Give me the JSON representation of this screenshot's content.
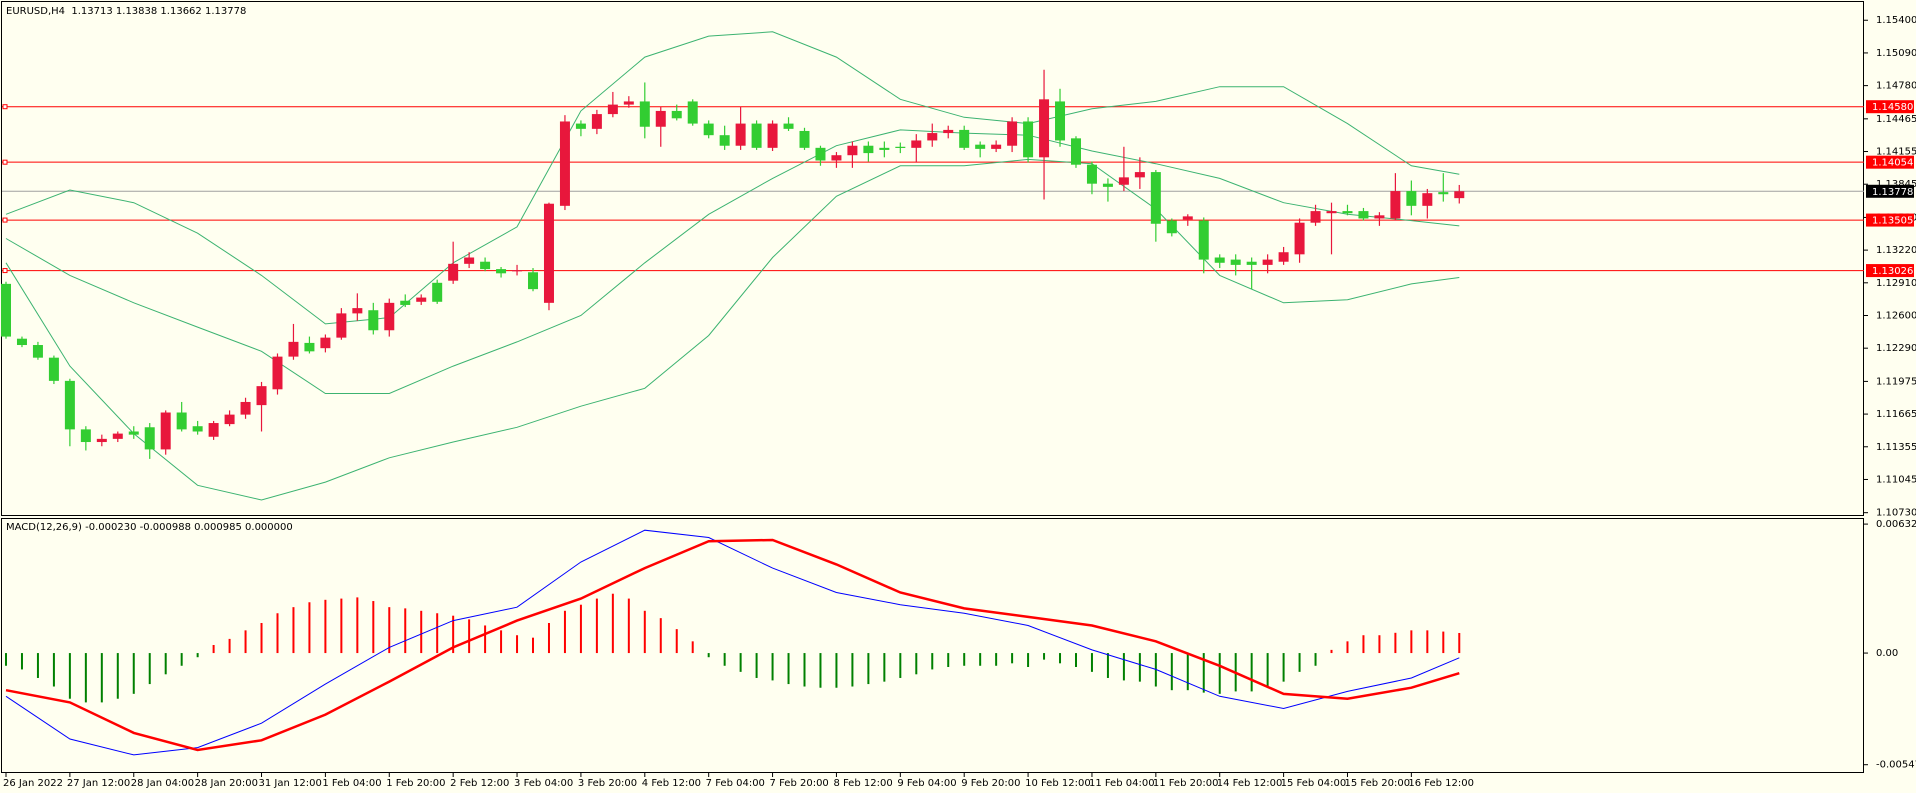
{
  "chart_data": [
    {
      "type": "candlestick",
      "title": "EURUSD,H4  1.13713 1.13838 1.13662 1.13778",
      "categories": [
        "26 Jan 2022",
        null,
        null,
        null,
        "27 Jan 12:00",
        null,
        null,
        null,
        "28 Jan 04:00",
        null,
        null,
        null,
        "28 Jan 20:00",
        null,
        null,
        null,
        "31 Jan 12:00",
        null,
        null,
        null,
        "1 Feb 04:00",
        null,
        null,
        null,
        "1 Feb 20:00",
        null,
        null,
        null,
        "2 Feb 12:00",
        null,
        null,
        null,
        "3 Feb 04:00",
        null,
        null,
        null,
        "3 Feb 20:00",
        null,
        null,
        null,
        "4 Feb 12:00",
        null,
        null,
        null,
        "7 Feb 04:00",
        null,
        null,
        null,
        "7 Feb 20:00",
        null,
        null,
        null,
        "8 Feb 12:00",
        null,
        null,
        null,
        "9 Feb 04:00",
        null,
        null,
        null,
        "9 Feb 20:00",
        null,
        null,
        null,
        "10 Feb 12:00",
        null,
        null,
        null,
        "11 Feb 04:00",
        null,
        null,
        null,
        "11 Feb 20:00",
        null,
        null,
        null,
        "14 Feb 12:00",
        null,
        null,
        null,
        "15 Feb 04:00",
        null,
        null,
        null,
        "15 Feb 20:00",
        null,
        null,
        null,
        "16 Feb 12:00",
        null,
        null,
        null
      ],
      "open": [
        1.129,
        1.1238,
        1.1232,
        1.122,
        1.1198,
        1.1152,
        1.114,
        1.1143,
        1.115,
        1.1154,
        1.1133,
        1.1168,
        1.1155,
        1.1145,
        1.1157,
        1.1166,
        1.1175,
        1.119,
        1.1221,
        1.1234,
        1.1229,
        1.1239,
        1.1262,
        1.1265,
        1.1246,
        1.1274,
        1.1273,
        1.1291,
        1.1293,
        1.1309,
        1.1311,
        1.1304,
        1.1302,
        1.1301,
        1.1272,
        1.1364,
        1.1442,
        1.1437,
        1.1451,
        1.146,
        1.1463,
        1.1439,
        1.1454,
        1.1463,
        1.1442,
        1.1431,
        1.1421,
        1.1442,
        1.1419,
        1.1442,
        1.1435,
        1.1419,
        1.1407,
        1.1412,
        1.1421,
        1.1419,
        1.142,
        1.1419,
        1.1426,
        1.1433,
        1.1436,
        1.1422,
        1.1418,
        1.1421,
        1.1444,
        1.141,
        1.1463,
        1.1428,
        1.1403,
        1.1385,
        1.1384,
        1.1391,
        1.1396,
        1.135,
        1.1351,
        1.135,
        1.1315,
        1.1313,
        1.1311,
        1.1308,
        1.1311,
        1.1318,
        1.1348,
        1.1357,
        1.1359,
        1.1359,
        1.1352,
        1.1352,
        1.1378,
        1.1364,
        1.1377,
        1.13713
      ],
      "high": [
        1.1292,
        1.124,
        1.1235,
        1.1222,
        1.12,
        1.1155,
        1.1147,
        1.115,
        1.1155,
        1.1158,
        1.117,
        1.1178,
        1.116,
        1.116,
        1.117,
        1.1182,
        1.1197,
        1.1224,
        1.1252,
        1.124,
        1.1242,
        1.1267,
        1.1281,
        1.1272,
        1.1276,
        1.128,
        1.128,
        1.1294,
        1.133,
        1.132,
        1.1315,
        1.1306,
        1.1308,
        1.1305,
        1.1367,
        1.145,
        1.1445,
        1.1455,
        1.1472,
        1.1468,
        1.1481,
        1.1458,
        1.146,
        1.1465,
        1.1445,
        1.144,
        1.1458,
        1.1445,
        1.1445,
        1.1448,
        1.1438,
        1.1421,
        1.1415,
        1.1425,
        1.1425,
        1.1425,
        1.1424,
        1.1432,
        1.1442,
        1.144,
        1.144,
        1.1425,
        1.1426,
        1.1448,
        1.1448,
        1.1493,
        1.1475,
        1.143,
        1.1406,
        1.139,
        1.142,
        1.141,
        1.1398,
        1.1352,
        1.1356,
        1.1353,
        1.1318,
        1.1318,
        1.1315,
        1.1318,
        1.1325,
        1.1352,
        1.1365,
        1.1367,
        1.1365,
        1.1362,
        1.1358,
        1.1395,
        1.1388,
        1.138,
        1.1395,
        1.13838
      ],
      "low": [
        1.1238,
        1.123,
        1.1218,
        1.1195,
        1.1136,
        1.1132,
        1.1136,
        1.114,
        1.1143,
        1.1124,
        1.1128,
        1.115,
        1.1147,
        1.1142,
        1.1155,
        1.1162,
        1.115,
        1.1185,
        1.1218,
        1.1224,
        1.1225,
        1.1237,
        1.1255,
        1.1242,
        1.124,
        1.1268,
        1.127,
        1.1271,
        1.129,
        1.1305,
        1.1302,
        1.1296,
        1.1298,
        1.1283,
        1.1265,
        1.136,
        1.143,
        1.1432,
        1.1448,
        1.1457,
        1.1428,
        1.142,
        1.1445,
        1.144,
        1.1428,
        1.1417,
        1.1417,
        1.1417,
        1.1416,
        1.1435,
        1.1417,
        1.1402,
        1.14,
        1.14,
        1.1406,
        1.141,
        1.1414,
        1.1405,
        1.142,
        1.1428,
        1.1417,
        1.141,
        1.1415,
        1.1415,
        1.1405,
        1.137,
        1.142,
        1.14,
        1.1375,
        1.1368,
        1.1378,
        1.138,
        1.133,
        1.1335,
        1.1345,
        1.13,
        1.1305,
        1.1298,
        1.1285,
        1.13,
        1.1308,
        1.131,
        1.1345,
        1.1318,
        1.1355,
        1.135,
        1.1345,
        1.135,
        1.1355,
        1.1352,
        1.1368,
        1.13662
      ],
      "close": [
        1.124,
        1.1232,
        1.122,
        1.1198,
        1.1152,
        1.114,
        1.1143,
        1.1148,
        1.1147,
        1.1133,
        1.1168,
        1.1152,
        1.115,
        1.1158,
        1.1166,
        1.1178,
        1.1193,
        1.1221,
        1.1235,
        1.1226,
        1.1239,
        1.1262,
        1.1267,
        1.1246,
        1.1272,
        1.127,
        1.1277,
        1.1273,
        1.1309,
        1.1315,
        1.1304,
        1.13,
        1.1303,
        1.1285,
        1.1366,
        1.1444,
        1.1437,
        1.1451,
        1.146,
        1.1463,
        1.1439,
        1.1454,
        1.1447,
        1.1442,
        1.1431,
        1.1421,
        1.1442,
        1.1419,
        1.1442,
        1.1437,
        1.1419,
        1.1407,
        1.1412,
        1.1421,
        1.1414,
        1.1417,
        1.1419,
        1.1426,
        1.1433,
        1.1436,
        1.1419,
        1.1418,
        1.1422,
        1.1444,
        1.141,
        1.1465,
        1.1426,
        1.1403,
        1.1385,
        1.1382,
        1.1391,
        1.1396,
        1.1347,
        1.1338,
        1.1354,
        1.1313,
        1.131,
        1.1308,
        1.1308,
        1.1313,
        1.132,
        1.1348,
        1.1359,
        1.1359,
        1.1357,
        1.1352,
        1.1355,
        1.1378,
        1.1364,
        1.1376,
        1.1375,
        1.13778
      ],
      "up_color": "#e8173c",
      "down_color": "#32cd32",
      "x": [
        0,
        4,
        8,
        12,
        16,
        20,
        24,
        28,
        32,
        36,
        40,
        44,
        48,
        52,
        56,
        60,
        64,
        68,
        72,
        76,
        80,
        84,
        88,
        91
      ],
      "series": [
        {
          "color": "#3cb371",
          "values": [
            1.1356,
            1.1379,
            1.1367,
            1.1338,
            1.1298,
            1.1252,
            1.1258,
            1.131,
            1.1344,
            1.1454,
            1.1505,
            1.1525,
            1.1529,
            1.1505,
            1.1465,
            1.1448,
            1.1442,
            1.1456,
            1.1463,
            1.1477,
            1.1477,
            1.1442,
            1.1402,
            1.1394
          ]
        },
        {
          "color": "#3cb371",
          "values": [
            1.1333,
            1.1298,
            1.1272,
            1.1249,
            1.1226,
            1.1186,
            1.1186,
            1.1212,
            1.1235,
            1.126,
            1.131,
            1.1356,
            1.139,
            1.1421,
            1.1436,
            1.1433,
            1.1431,
            1.1416,
            1.1404,
            1.139,
            1.1367,
            1.1356,
            1.135,
            1.1345
          ]
        },
        {
          "color": "#3cb371",
          "values": [
            1.131,
            1.1212,
            1.1148,
            1.1099,
            1.1085,
            1.1102,
            1.1125,
            1.114,
            1.1154,
            1.1174,
            1.1191,
            1.1241,
            1.1315,
            1.1373,
            1.1402,
            1.1402,
            1.1408,
            1.1404,
            1.1361,
            1.1298,
            1.1272,
            1.1275,
            1.129,
            1.1296
          ]
        }
      ],
      "levels": [
        {
          "value": 1.1458,
          "label": "1.14580"
        },
        {
          "value": 1.14054,
          "label": "1.14054"
        },
        {
          "value": 1.13505,
          "label": "1.13505"
        },
        {
          "value": 1.13026,
          "label": "1.13026"
        }
      ],
      "level_color": "#ff0000",
      "last_price": {
        "value": 1.13778,
        "label": "1.13778"
      },
      "last_price_color": "#a0a0a0",
      "ylim": [
        1.10708,
        1.15573
      ],
      "yticks": [
        {
          "value": 1.154,
          "label": "1.15400"
        },
        {
          "value": 1.1509,
          "label": "1.15090"
        },
        {
          "value": 1.1478,
          "label": "1.14780"
        },
        {
          "value": 1.14465,
          "label": "1.14465"
        },
        {
          "value": 1.14155,
          "label": "1.14155"
        },
        {
          "value": 1.13845,
          "label": "1.13845"
        },
        {
          "value": 1.1353,
          "label": "1.13530"
        },
        {
          "value": 1.1322,
          "label": "1.13220"
        },
        {
          "value": 1.1291,
          "label": "1.12910"
        },
        {
          "value": 1.126,
          "label": "1.12600"
        },
        {
          "value": 1.1229,
          "label": "1.12290"
        },
        {
          "value": 1.11975,
          "label": "1.11975"
        },
        {
          "value": 1.11665,
          "label": "1.11665"
        },
        {
          "value": 1.11355,
          "label": "1.11355"
        },
        {
          "value": 1.11045,
          "label": "1.11045"
        },
        {
          "value": 1.1073,
          "label": "1.10730"
        }
      ],
      "grid": false
    },
    {
      "type": "macd",
      "title": "MACD(12,26,9) -0.000230 -0.000988 0.000985 0.000000",
      "histogram": {
        "up_color": "#ff0000",
        "down_color": "#008000",
        "values": [
          -0.000623,
          -0.000803,
          -0.001222,
          -0.001641,
          -0.00224,
          -0.00242,
          -0.00242,
          -0.00224,
          -0.002,
          -0.001521,
          -0.001042,
          -0.000623,
          -0.000204,
          0.000395,
          0.000695,
          0.001114,
          0.001474,
          0.001953,
          0.002252,
          0.002492,
          0.002612,
          0.002672,
          0.002731,
          0.002552,
          0.002252,
          0.002192,
          0.002073,
          0.001953,
          0.001833,
          0.001653,
          0.001354,
          0.001114,
          0.000875,
          0.000755,
          0.001474,
          0.002073,
          0.002372,
          0.002672,
          0.002911,
          0.002672,
          0.002073,
          0.001713,
          0.001174,
          0.000575,
          -0.000204,
          -0.000623,
          -0.000922,
          -0.001222,
          -0.001342,
          -0.001521,
          -0.001641,
          -0.001701,
          -0.001701,
          -0.001641,
          -0.001521,
          -0.001402,
          -0.001222,
          -0.001042,
          -0.000803,
          -0.000683,
          -0.000623,
          -0.000623,
          -0.000623,
          -0.000503,
          -0.000683,
          -0.000323,
          -0.000503,
          -0.000683,
          -0.000922,
          -0.001222,
          -0.001342,
          -0.001402,
          -0.001641,
          -0.001821,
          -0.001821,
          -0.001941,
          -0.002,
          -0.001881,
          -0.001881,
          -0.001641,
          -0.001402,
          -0.000922,
          -0.000623,
          0.000156,
          0.000575,
          0.000875,
          0.000875,
          0.000994,
          0.001114,
          0.001114,
          0.001054,
          0.000985
        ]
      },
      "x": [
        0,
        4,
        8,
        12,
        16,
        20,
        24,
        28,
        32,
        36,
        40,
        44,
        48,
        52,
        56,
        60,
        64,
        68,
        72,
        76,
        80,
        84,
        88,
        91
      ],
      "series": [
        {
          "color": "#0000ff",
          "width": 1,
          "values": [
            -0.00212,
            -0.004217,
            -0.004996,
            -0.004636,
            -0.003438,
            -0.001521,
            0.000276,
            0.001593,
            0.002252,
            0.004469,
            0.006026,
            0.005667,
            0.004169,
            0.002971,
            0.002372,
            0.001953,
            0.001354,
            0.000156,
            -0.000803,
            -0.00212,
            -0.002719,
            -0.001881,
            -0.001222,
            -0.00023
          ]
        },
        {
          "color": "#ff0000",
          "width": 2.5,
          "values": [
            -0.001821,
            -0.00242,
            -0.003917,
            -0.004756,
            -0.004277,
            -0.003019,
            -0.001402,
            0.000276,
            0.001593,
            0.002672,
            0.004169,
            0.005487,
            0.005547,
            0.004349,
            0.002971,
            0.002192,
            0.001773,
            0.001354,
            0.000575,
            -0.000623,
            -0.002001,
            -0.00224,
            -0.001701,
            -0.000988
          ]
        }
      ],
      "ylim": [
        -0.005834,
        0.006625
      ],
      "yticks": [
        0.006326,
        {
          "value": 0,
          "label": "0.00"
        },
        -0.005476
      ],
      "grid": false
    }
  ]
}
